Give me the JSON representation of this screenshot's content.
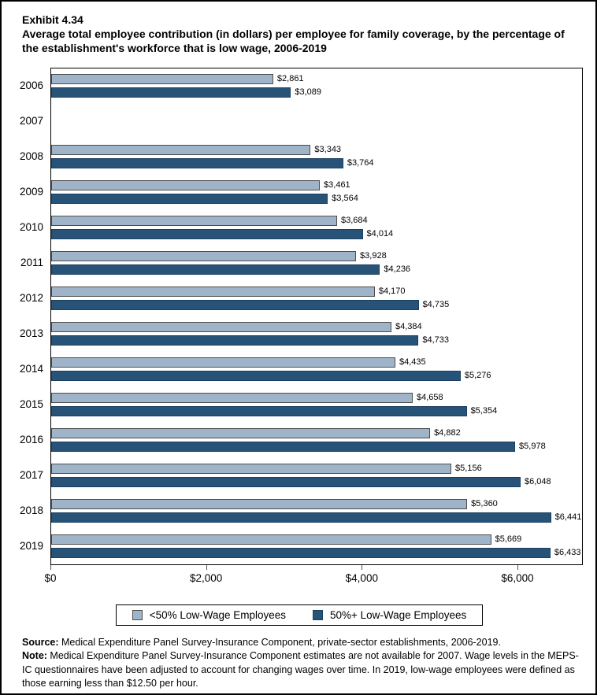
{
  "header": {
    "exhibit_label": "Exhibit 4.34",
    "title": "Average total employee contribution (in dollars) per employee for family coverage, by the percentage of the establishment's workforce that is low wage, 2006-2019"
  },
  "chart_data": {
    "type": "bar",
    "orientation": "horizontal",
    "title": "Average total employee contribution (in dollars) per employee for family coverage, by the percentage of the establishment's workforce that is low wage, 2006-2019",
    "categories": [
      "2006",
      "2007",
      "2008",
      "2009",
      "2010",
      "2011",
      "2012",
      "2013",
      "2014",
      "2015",
      "2016",
      "2017",
      "2018",
      "2019"
    ],
    "series": [
      {
        "name": "<50% Low-Wage Employees",
        "color": "#9FB4C8",
        "values": [
          2861,
          null,
          3343,
          3461,
          3684,
          3928,
          4170,
          4384,
          4435,
          4658,
          4882,
          5156,
          5360,
          5669
        ],
        "labels": [
          "$2,861",
          "",
          "$3,343",
          "$3,461",
          "$3,684",
          "$3,928",
          "$4,170",
          "$4,384",
          "$4,435",
          "$4,658",
          "$4,882",
          "$5,156",
          "$5,360",
          "$5,669"
        ]
      },
      {
        "name": "50%+ Low-Wage Employees",
        "color": "#275378",
        "values": [
          3089,
          null,
          3764,
          3564,
          4014,
          4236,
          4735,
          4733,
          5276,
          5354,
          5978,
          6048,
          6441,
          6433
        ],
        "labels": [
          "$3,089",
          "",
          "$3,764",
          "$3,564",
          "$4,014",
          "$4,236",
          "$4,735",
          "$4,733",
          "$5,276",
          "$5,354",
          "$5,978",
          "$6,048",
          "$6,441",
          "$6,433"
        ]
      }
    ],
    "xlabel": "",
    "ylabel": "",
    "xlim": [
      0,
      6840
    ],
    "x_ticks": [
      {
        "value": 0,
        "label": "$0"
      },
      {
        "value": 2000,
        "label": "$2,000"
      },
      {
        "value": 4000,
        "label": "$4,000"
      },
      {
        "value": 6000,
        "label": "$6,000"
      }
    ],
    "grid": false,
    "legend_position": "bottom",
    "data_unavailable_categories": [
      "2007"
    ]
  },
  "footer": {
    "source_label": "Source:",
    "source_text": " Medical Expenditure Panel Survey-Insurance Component, private-sector establishments, 2006-2019.",
    "note_label": "Note:",
    "note_text": " Medical Expenditure Panel Survey-Insurance Component estimates are not available for 2007. Wage levels in the MEPS-IC questionnaires have been adjusted to account for changing wages over time. In 2019, low-wage employees were defined as those earning less than $12.50 per hour."
  }
}
